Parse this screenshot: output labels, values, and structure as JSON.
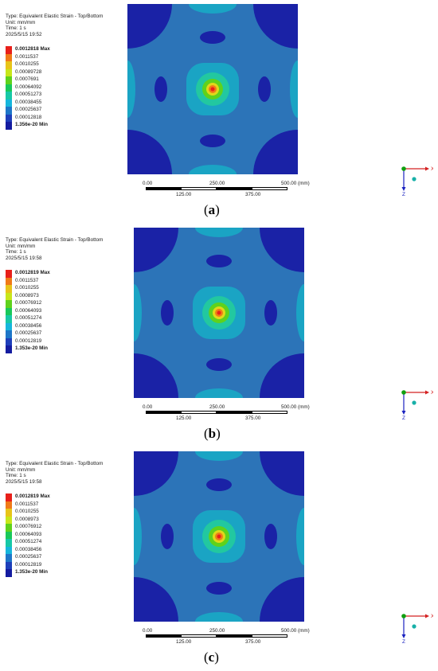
{
  "panels": [
    {
      "info": {
        "type": "Type: Equivalent Elastic Strain - Top/Bottom",
        "unit": "Unit: mm/mm",
        "time": "Time: 1 s",
        "date": "2025/5/15 19:52"
      },
      "legend": [
        "0.0012818 Max",
        "0.0011537",
        "0.0010255",
        "0.00089728",
        "0.0007691",
        "0.00064092",
        "0.00051273",
        "0.00038455",
        "0.00025637",
        "0.00012818",
        "1.356e-20 Min"
      ],
      "scale": {
        "top": [
          "0.00",
          "250.00",
          "500.00 (mm)"
        ],
        "bottom": [
          "125.00",
          "375.00"
        ]
      },
      "axes": {
        "x": "X",
        "z": "Z"
      },
      "caption": {
        "open": "(",
        "letter": "a",
        "close": ")"
      }
    },
    {
      "info": {
        "type": "Type: Equivalent Elastic Strain - Top/Bottom",
        "unit": "Unit: mm/mm",
        "time": "Time: 1 s",
        "date": "2025/5/15 19:58"
      },
      "legend": [
        "0.0012819 Max",
        "0.0011537",
        "0.0010255",
        "0.0008973",
        "0.00076912",
        "0.00064093",
        "0.00051274",
        "0.00038456",
        "0.00025637",
        "0.00012819",
        "1.353e-20 Min"
      ],
      "scale": {
        "top": [
          "0.00",
          "250.00",
          "500.00 (mm)"
        ],
        "bottom": [
          "125.00",
          "375.00"
        ]
      },
      "axes": {
        "x": "X",
        "z": "Z"
      },
      "caption": {
        "open": "(",
        "letter": "b",
        "close": ")"
      }
    },
    {
      "info": {
        "type": "Type: Equivalent Elastic Strain - Top/Bottom",
        "unit": "Unit: mm/mm",
        "time": "Time: 1 s",
        "date": "2025/5/15 19:58"
      },
      "legend": [
        "0.0012819 Max",
        "0.0011537",
        "0.0010255",
        "0.0008973",
        "0.00076912",
        "0.00064093",
        "0.00051274",
        "0.00038456",
        "0.00025637",
        "0.00012819",
        "1.353e-20 Min"
      ],
      "scale": {
        "top": [
          "0.00",
          "250.00",
          "500.00 (mm)"
        ],
        "bottom": [
          "125.00",
          "375.00"
        ]
      },
      "axes": {
        "x": "X",
        "z": "Z"
      },
      "caption": {
        "open": "(",
        "letter": "c",
        "close": ")"
      }
    }
  ],
  "colors": {
    "legend": [
      "#e8201a",
      "#f07a18",
      "#e8c419",
      "#c8e61a",
      "#5fd21c",
      "#19c85a",
      "#17c8a6",
      "#16b6dc",
      "#1e76c8",
      "#1e3fba",
      "#141ca0"
    ],
    "field_base": "#2c74b8",
    "field_low": "#1a22a6",
    "field_mid": "#1aa4c4",
    "field_ring": "#22c8a0",
    "field_hot": "#e0d81a",
    "field_peak": "#e8201a",
    "axis_x": "#d42020",
    "axis_y": "#10a010",
    "axis_z": "#1a22c0"
  }
}
